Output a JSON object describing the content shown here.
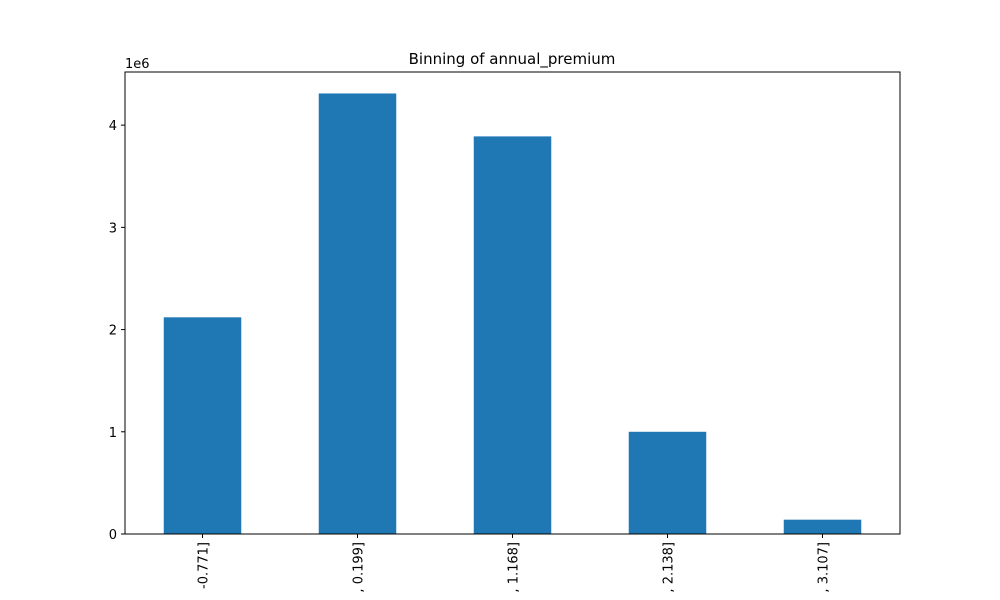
{
  "chart_data": {
    "type": "bar",
    "title": "Binning of annual_premium",
    "xlabel": "",
    "ylabel": "",
    "categories": [
      "-0.771]",
      ", 0.199]",
      ", 1.168]",
      ", 2.138]",
      ", 3.107]"
    ],
    "values": [
      2120000,
      4310000,
      3890000,
      1000000,
      140000
    ],
    "ylim": [
      0,
      4520000
    ],
    "yticks": [
      0,
      1,
      2,
      3,
      4
    ],
    "yticks_scale": 1000000,
    "offset_label": "1e6",
    "bar_color": "#1f77b4",
    "grid": false
  }
}
